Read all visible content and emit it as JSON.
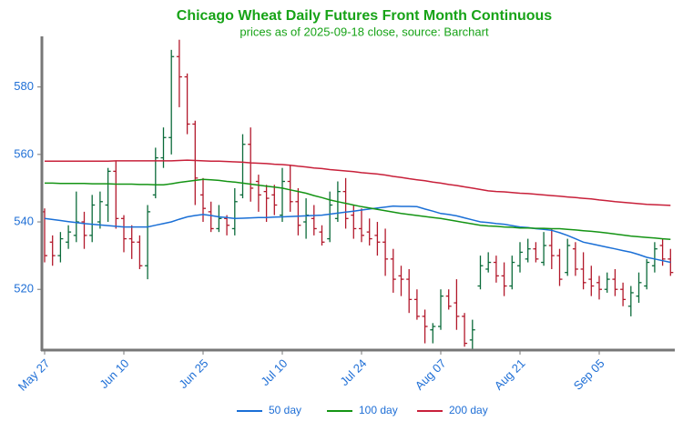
{
  "chart_data": {
    "type": "ohlc",
    "title": "Chicago Wheat Daily Futures Front Month Continuous",
    "subtitle": "prices as of 2025-09-18 close, source: Barchart",
    "categories": [
      "May 27",
      null,
      null,
      null,
      null,
      null,
      null,
      null,
      null,
      null,
      "Jun 10",
      null,
      null,
      null,
      null,
      null,
      null,
      null,
      null,
      null,
      "Jun 25",
      null,
      null,
      null,
      null,
      null,
      null,
      null,
      null,
      null,
      "Jul 10",
      null,
      null,
      null,
      null,
      null,
      null,
      null,
      null,
      null,
      "Jul 24",
      null,
      null,
      null,
      null,
      null,
      null,
      null,
      null,
      null,
      "Aug 07",
      null,
      null,
      null,
      null,
      null,
      null,
      null,
      null,
      null,
      "Aug 21",
      null,
      null,
      null,
      null,
      null,
      null,
      null,
      null,
      null,
      "Sep 05",
      null,
      null,
      null,
      null,
      null,
      null,
      null,
      null,
      null
    ],
    "open": [
      543,
      534,
      530,
      534,
      536,
      540,
      536,
      540,
      545,
      555,
      541,
      535,
      534,
      527,
      548,
      559,
      565,
      589,
      583,
      569,
      548,
      543,
      538,
      541,
      538,
      548,
      563,
      552,
      549,
      548,
      542,
      552,
      546,
      540,
      541,
      537,
      535,
      541,
      549,
      542,
      538,
      537,
      536,
      534,
      529,
      524,
      523,
      517,
      512,
      508,
      509,
      518,
      516,
      512,
      505,
      521,
      526,
      528,
      524,
      521,
      527,
      529,
      532,
      528,
      533,
      530,
      525,
      532,
      526,
      523,
      522,
      520,
      523,
      520,
      515,
      518,
      521,
      527,
      533,
      529
    ],
    "high": [
      544,
      536,
      537,
      539,
      549,
      543,
      548,
      549,
      556,
      558,
      542,
      539,
      536,
      545,
      562,
      568,
      591,
      594,
      584,
      570,
      553,
      546,
      545,
      542,
      550,
      566,
      568,
      554,
      551,
      551,
      556,
      557,
      550,
      547,
      545,
      539,
      549,
      552,
      553,
      545,
      544,
      541,
      540,
      538,
      532,
      527,
      526,
      520,
      514,
      510,
      520,
      520,
      523,
      513,
      511,
      530,
      531,
      530,
      528,
      530,
      534,
      535,
      534,
      537,
      538,
      532,
      535,
      534,
      531,
      527,
      524,
      525,
      526,
      522,
      521,
      525,
      529,
      534,
      535,
      532
    ],
    "low": [
      528,
      527,
      528,
      532,
      534,
      532,
      534,
      538,
      540,
      538,
      531,
      529,
      526,
      523,
      547,
      556,
      560,
      574,
      566,
      545,
      540,
      537,
      537,
      536,
      536,
      547,
      546,
      543,
      540,
      542,
      540,
      543,
      536,
      535,
      536,
      533,
      534,
      540,
      538,
      535,
      534,
      533,
      530,
      524,
      519,
      518,
      513,
      511,
      504,
      504,
      508,
      514,
      508,
      503,
      502,
      520,
      525,
      522,
      518,
      520,
      525,
      528,
      528,
      527,
      526,
      521,
      524,
      524,
      520,
      518,
      517,
      519,
      518,
      515,
      512,
      516,
      520,
      525,
      527,
      524
    ],
    "close": [
      530,
      530,
      535,
      537,
      540,
      536,
      545,
      546,
      555,
      541,
      535,
      534,
      527,
      543,
      559,
      565,
      589,
      583,
      569,
      553,
      544,
      538,
      541,
      539,
      546,
      563,
      550,
      548,
      547,
      545,
      552,
      546,
      539,
      542,
      538,
      534,
      545,
      549,
      541,
      538,
      536,
      535,
      534,
      529,
      523,
      523,
      517,
      512,
      509,
      509,
      518,
      515,
      512,
      504,
      508,
      527,
      528,
      524,
      521,
      528,
      531,
      532,
      529,
      533,
      530,
      523,
      533,
      526,
      522,
      521,
      520,
      523,
      520,
      517,
      519,
      522,
      528,
      532,
      529,
      525
    ],
    "up_color": "#0b6b3a",
    "down_color": "#b2182b",
    "series": [
      {
        "name": "50 day",
        "color": "#1a6fd6",
        "values": [
          541.0,
          540.7,
          540.4,
          540.1,
          539.8,
          539.5,
          539.3,
          539.1,
          538.9,
          538.7,
          538.5,
          538.5,
          538.5,
          538.5,
          539.0,
          539.5,
          540.0,
          540.8,
          541.5,
          541.9,
          542.2,
          541.9,
          541.5,
          541.3,
          541.0,
          541.1,
          541.2,
          541.3,
          541.3,
          541.4,
          541.5,
          541.6,
          541.7,
          541.8,
          541.9,
          542.0,
          542.3,
          542.6,
          542.9,
          543.2,
          543.5,
          543.8,
          544.1,
          544.4,
          544.7,
          544.6,
          544.6,
          544.5,
          543.8,
          543.2,
          542.5,
          542.2,
          541.8,
          541.2,
          540.6,
          540.0,
          539.8,
          539.5,
          539.3,
          538.9,
          538.5,
          538.3,
          538.0,
          537.8,
          537.5,
          536.8,
          536.0,
          535.0,
          534.0,
          533.5,
          533.0,
          532.5,
          532.0,
          531.5,
          531.0,
          530.3,
          529.5,
          529.0,
          528.5,
          528.0
        ]
      },
      {
        "name": "100 day",
        "color": "#149414",
        "values": [
          551.5,
          551.5,
          551.4,
          551.4,
          551.4,
          551.4,
          551.3,
          551.3,
          551.3,
          551.2,
          551.2,
          551.2,
          551.1,
          551.1,
          551.0,
          551.0,
          551.3,
          551.7,
          552.0,
          552.3,
          552.6,
          552.5,
          552.3,
          552.0,
          551.8,
          551.5,
          551.2,
          550.9,
          550.6,
          550.3,
          550.0,
          549.5,
          549.0,
          548.5,
          547.8,
          547.2,
          546.5,
          546.0,
          545.5,
          545.0,
          544.5,
          544.1,
          543.7,
          543.3,
          542.9,
          542.5,
          542.2,
          541.9,
          541.6,
          541.3,
          541.0,
          540.6,
          540.2,
          539.8,
          539.4,
          539.0,
          538.8,
          538.7,
          538.5,
          538.4,
          538.2,
          538.2,
          538.1,
          538.1,
          538.0,
          538.0,
          537.8,
          537.6,
          537.4,
          537.2,
          537.0,
          536.7,
          536.4,
          536.1,
          535.8,
          535.6,
          535.4,
          535.2,
          535.0,
          534.8
        ]
      },
      {
        "name": "200 day",
        "color": "#c8203a",
        "values": [
          558.0,
          558.0,
          558.0,
          558.0,
          558.0,
          558.0,
          558.0,
          558.0,
          558.0,
          558.1,
          558.1,
          558.1,
          558.1,
          558.1,
          558.1,
          558.1,
          558.1,
          558.2,
          558.3,
          558.2,
          558.1,
          558.0,
          558.0,
          557.9,
          557.8,
          557.7,
          557.5,
          557.4,
          557.3,
          557.1,
          557.0,
          556.8,
          556.5,
          556.3,
          556.0,
          555.8,
          555.5,
          555.3,
          555.1,
          554.9,
          554.6,
          554.4,
          554.2,
          553.9,
          553.5,
          553.2,
          552.8,
          552.5,
          552.2,
          551.8,
          551.5,
          551.1,
          550.8,
          550.4,
          550.0,
          549.6,
          549.2,
          549.0,
          548.9,
          548.7,
          548.5,
          548.4,
          548.2,
          548.0,
          547.8,
          547.6,
          547.4,
          547.2,
          547.0,
          546.8,
          546.5,
          546.3,
          546.0,
          545.8,
          545.6,
          545.4,
          545.2,
          545.1,
          545.0,
          544.9
        ]
      }
    ],
    "ylim": [
      502,
      595
    ],
    "yticks": [
      520,
      540,
      560,
      580
    ]
  }
}
